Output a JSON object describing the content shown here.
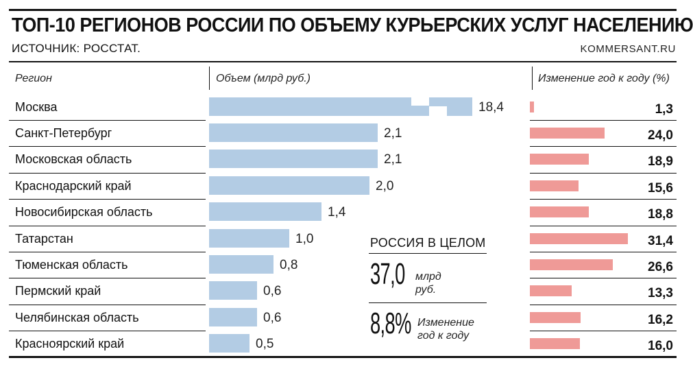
{
  "header": {
    "title": "ТОП-10 РЕГИОНОВ РОССИИ ПО ОБЪЕМУ КУРЬЕРСКИХ УСЛУГ НАСЕЛЕНИЮ",
    "source": "ИСТОЧНИК: РОССТАТ.",
    "brand": "KOMMERSANT.RU"
  },
  "columns": {
    "region": "Регион",
    "volume": "Объем (млрд руб.)",
    "change": "Изменение год к году (%)"
  },
  "chart_data": [
    {
      "type": "bar",
      "categories": [
        "Москва",
        "Санкт-Петербург",
        "Московская область",
        "Краснодарский край",
        "Новосибирская область",
        "Татарстан",
        "Тюменская область",
        "Пермский край",
        "Челябинская область",
        "Красноярский край"
      ],
      "values": [
        18.4,
        2.1,
        2.1,
        2.0,
        1.4,
        1.0,
        0.8,
        0.6,
        0.6,
        0.5
      ],
      "value_labels": [
        "18,4",
        "2,1",
        "2,1",
        "2,0",
        "1,4",
        "1,0",
        "0,8",
        "0,6",
        "0,6",
        "0,5"
      ],
      "ylabel": "Объем (млрд руб.)",
      "orientation": "horizontal",
      "broken_axis": true,
      "color": "#b3cce4"
    },
    {
      "type": "bar",
      "categories": [
        "Москва",
        "Санкт-Петербург",
        "Московская область",
        "Краснодарский край",
        "Новосибирская область",
        "Татарстан",
        "Тюменская область",
        "Пермский край",
        "Челябинская область",
        "Красноярский край"
      ],
      "values": [
        1.3,
        24.0,
        18.9,
        15.6,
        18.8,
        31.4,
        26.6,
        13.3,
        16.2,
        16.0
      ],
      "value_labels": [
        "1,3",
        "24,0",
        "18,9",
        "15,6",
        "18,8",
        "31,4",
        "26,6",
        "13,3",
        "16,2",
        "16,0"
      ],
      "ylabel": "Изменение год к году (%)",
      "orientation": "horizontal",
      "color": "#ef9a97"
    }
  ],
  "russia_total": {
    "title": "РОССИЯ В ЦЕЛОМ",
    "volume_value": "37,0",
    "volume_unit_line1": "млрд",
    "volume_unit_line2": "руб.",
    "change_value": "8,8",
    "change_unit": "%",
    "change_label_line1": "Изменение",
    "change_label_line2": "год к году"
  }
}
